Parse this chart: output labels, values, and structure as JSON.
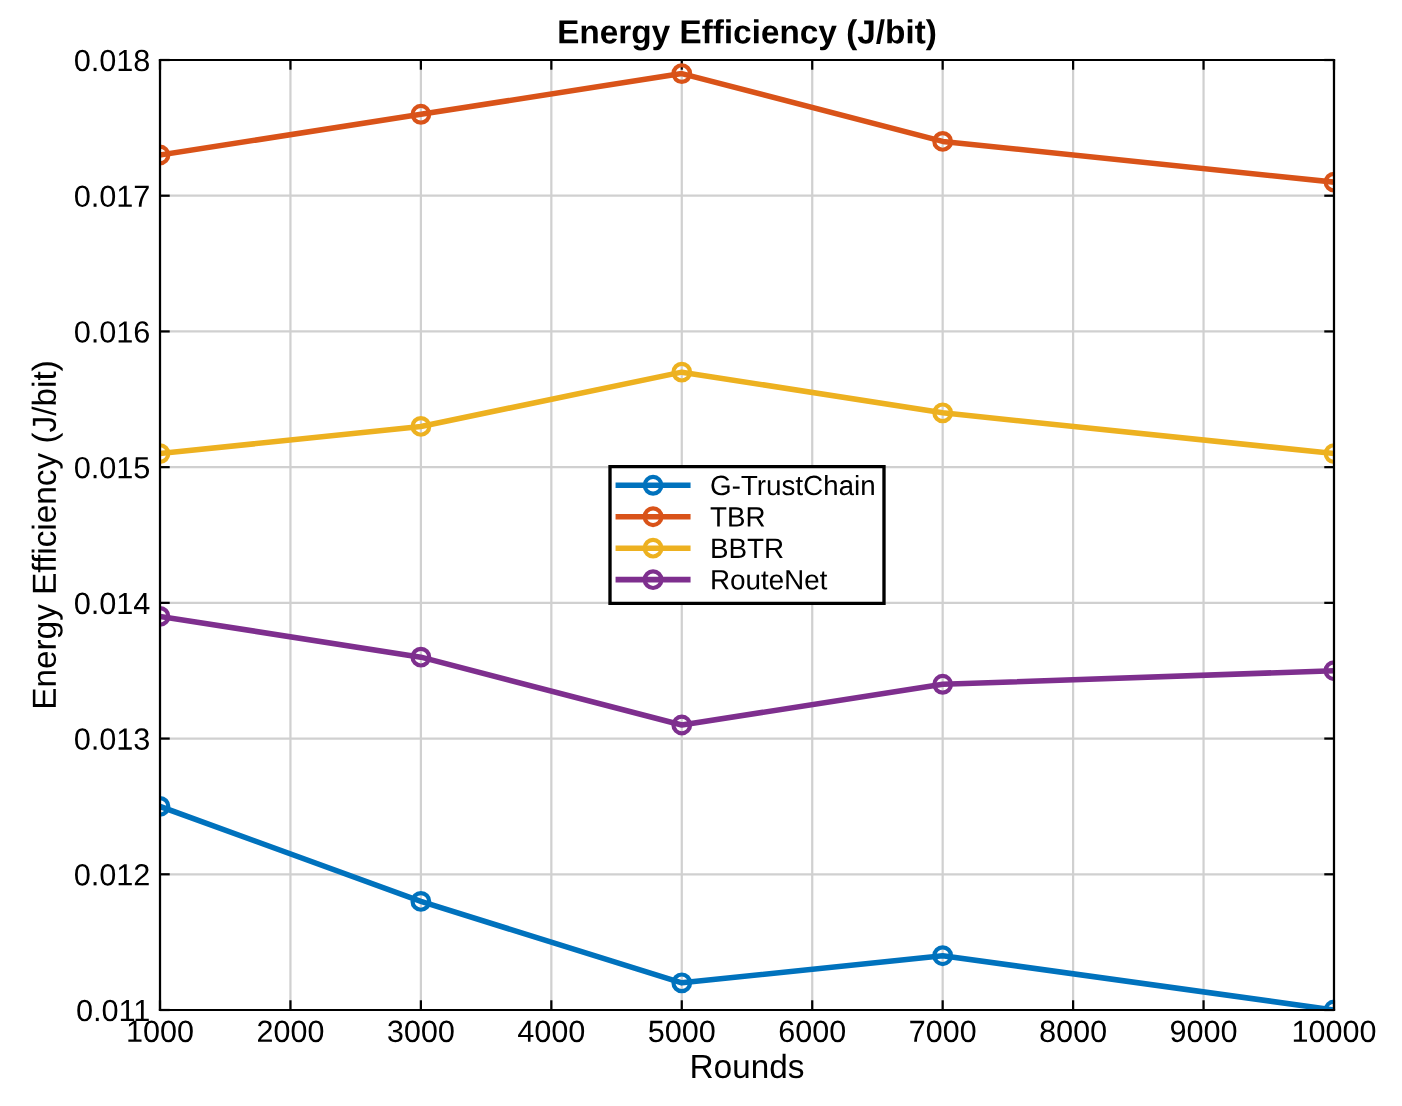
{
  "chart_data": {
    "type": "line",
    "title": "Energy Efficiency (J/bit)",
    "xlabel": "Rounds",
    "ylabel": "Energy Efficiency (J/bit)",
    "x": [
      1000,
      3000,
      5000,
      7000,
      10000
    ],
    "series": [
      {
        "name": "G-TrustChain",
        "color": "#0072bd",
        "values": [
          0.0125,
          0.0118,
          0.0112,
          0.0114,
          0.011
        ]
      },
      {
        "name": "TBR",
        "color": "#d95319",
        "values": [
          0.0173,
          0.0176,
          0.0179,
          0.0174,
          0.0171
        ]
      },
      {
        "name": "BBTR",
        "color": "#edb120",
        "values": [
          0.0151,
          0.0153,
          0.0157,
          0.0154,
          0.0151
        ]
      },
      {
        "name": "RouteNet",
        "color": "#7e2f8e",
        "values": [
          0.0139,
          0.0136,
          0.0131,
          0.0134,
          0.0135
        ]
      }
    ],
    "xlim": [
      1000,
      10000
    ],
    "xticks": [
      1000,
      2000,
      3000,
      4000,
      5000,
      6000,
      7000,
      8000,
      9000,
      10000
    ],
    "ylim": [
      0.011,
      0.018
    ],
    "yticks": [
      0.011,
      0.012,
      0.013,
      0.014,
      0.015,
      0.016,
      0.017,
      0.018
    ],
    "grid": true,
    "legend": "center",
    "marker": "circle",
    "line_style": "solid"
  }
}
